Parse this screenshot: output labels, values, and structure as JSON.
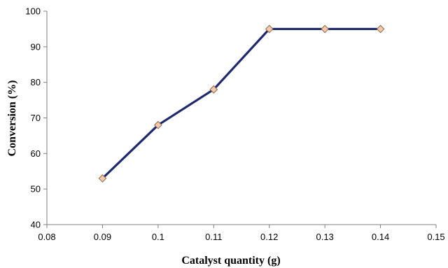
{
  "chart_data": {
    "type": "line",
    "title": "",
    "xlabel": "Catalyst quantity (g)",
    "ylabel": "Conversion (%)",
    "xlim": [
      0.08,
      0.15
    ],
    "ylim": [
      40,
      100
    ],
    "x_ticks": [
      "0.08",
      "0.09",
      "0.1",
      "0.11",
      "0.12",
      "0.13",
      "0.14",
      "0.15"
    ],
    "y_ticks": [
      "40",
      "50",
      "60",
      "70",
      "80",
      "90",
      "100"
    ],
    "grid": false,
    "legend": "none",
    "series": [
      {
        "x": [
          0.09,
          0.1,
          0.11,
          0.12,
          0.13,
          0.14
        ],
        "values": [
          53,
          68,
          78,
          95,
          95,
          95
        ],
        "line_color": "#1f2a6b",
        "marker": "diamond",
        "marker_fill": "#f5c9a8",
        "marker_stroke": "#8a6a55"
      }
    ]
  }
}
